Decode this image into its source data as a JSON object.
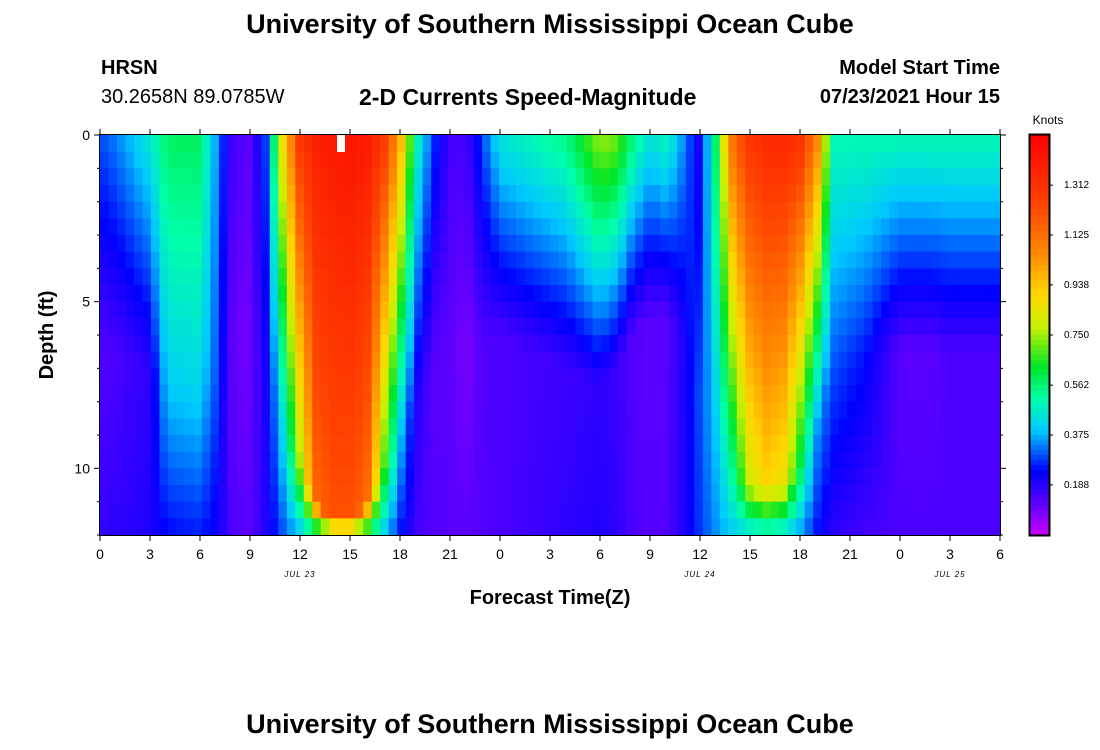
{
  "header": {
    "title": "University of Southern Mississippi Ocean Cube",
    "station": "HRSN",
    "coords": "30.2658N  89.0785W",
    "plot_title": "2-D Currents Speed-Magnitude",
    "model_start_label": "Model Start Time",
    "model_start_value": "07/23/2021 Hour 15"
  },
  "footer": {
    "title": "University of Southern Mississippi Ocean Cube"
  },
  "colorbar": {
    "unit": "Knots",
    "min": 0,
    "max": 1.5,
    "ticks": [
      "1.312",
      "1.125",
      "0.938",
      "0.750",
      "0.562",
      "0.375",
      "0.188"
    ],
    "tick_values": [
      1.312,
      1.125,
      0.938,
      0.75,
      0.562,
      0.375,
      0.188
    ]
  },
  "chart_data": {
    "type": "heatmap",
    "title": "2-D Currents Speed-Magnitude",
    "xlabel": "Forecast Time(Z)",
    "ylabel": "Depth (ft)",
    "x_hours_range": [
      0,
      54
    ],
    "y_depth_range_ft": [
      0,
      12
    ],
    "x_tick_labels": [
      "0",
      "3",
      "6",
      "9",
      "12",
      "15",
      "18",
      "21",
      "0",
      "3",
      "6",
      "9",
      "12",
      "15",
      "18",
      "21",
      "0",
      "3",
      "6"
    ],
    "y_tick_labels": [
      "0",
      "5",
      "10"
    ],
    "y_tick_values": [
      0,
      5,
      10
    ],
    "date_labels": [
      {
        "text": "JUL 23",
        "hour": 12
      },
      {
        "text": "JUL 24",
        "hour": 36
      },
      {
        "text": "JUL 25",
        "hour": 51
      }
    ],
    "value_unit": "knots",
    "keyframes_hour": [
      0,
      1,
      3,
      4,
      6,
      7,
      8,
      9,
      10,
      11,
      12,
      13,
      14,
      15,
      16,
      17,
      18,
      19,
      20,
      21,
      22,
      23,
      24,
      26,
      28,
      30,
      31,
      32,
      33,
      34,
      35,
      36,
      37,
      38,
      39,
      40,
      41,
      42,
      43,
      44,
      46,
      48,
      50,
      51,
      52,
      53,
      54
    ],
    "surface_speed_knots": [
      0.3,
      0.34,
      0.46,
      0.58,
      0.58,
      0.35,
      0.14,
      0.12,
      0.3,
      0.9,
      1.3,
      1.38,
      1.4,
      1.42,
      1.4,
      1.3,
      1.0,
      0.5,
      0.28,
      0.15,
      0.15,
      0.3,
      0.45,
      0.5,
      0.55,
      0.75,
      0.72,
      0.55,
      0.45,
      0.5,
      0.35,
      0.2,
      0.6,
      1.15,
      1.3,
      1.34,
      1.35,
      1.32,
      1.1,
      0.5,
      0.5,
      0.5,
      0.5,
      0.5,
      0.5,
      0.5,
      0.5
    ],
    "bottom_speed_knots": [
      0.17,
      0.18,
      0.2,
      0.24,
      0.26,
      0.22,
      0.13,
      0.12,
      0.2,
      0.3,
      0.38,
      0.5,
      0.58,
      0.6,
      0.55,
      0.4,
      0.25,
      0.15,
      0.13,
      0.12,
      0.12,
      0.13,
      0.14,
      0.16,
      0.18,
      0.2,
      0.18,
      0.14,
      0.12,
      0.13,
      0.2,
      0.28,
      0.35,
      0.4,
      0.42,
      0.45,
      0.42,
      0.35,
      0.25,
      0.18,
      0.15,
      0.14,
      0.14,
      0.14,
      0.14,
      0.14,
      0.14
    ],
    "min_speed_knots": [
      0.13,
      0.14,
      0.18,
      0.4,
      0.42,
      0.3,
      0.1,
      0.1,
      0.22,
      0.45,
      0.75,
      1.15,
      1.2,
      1.2,
      1.15,
      0.7,
      0.4,
      0.2,
      0.12,
      0.12,
      0.08,
      0.14,
      0.14,
      0.15,
      0.16,
      0.18,
      0.16,
      0.13,
      0.12,
      0.12,
      0.2,
      0.3,
      0.4,
      0.55,
      0.8,
      0.9,
      0.85,
      0.6,
      0.35,
      0.3,
      0.25,
      0.12,
      0.12,
      0.14,
      0.14,
      0.14,
      0.14
    ],
    "min_depth_ft": [
      6.5,
      6.5,
      7.0,
      7.5,
      7.5,
      7.0,
      6.0,
      6.0,
      7.0,
      8.5,
      10.0,
      11.0,
      11.5,
      11.5,
      11.0,
      10.0,
      9.0,
      8.0,
      7.0,
      6.0,
      6.5,
      6.0,
      6.0,
      6.5,
      7.0,
      7.5,
      7.0,
      6.0,
      5.5,
      5.5,
      6.0,
      8.0,
      9.0,
      10.0,
      10.5,
      10.5,
      10.5,
      10.0,
      9.0,
      7.0,
      6.5,
      6.5,
      6.5,
      6.5,
      6.5,
      6.5,
      6.5
    ]
  }
}
